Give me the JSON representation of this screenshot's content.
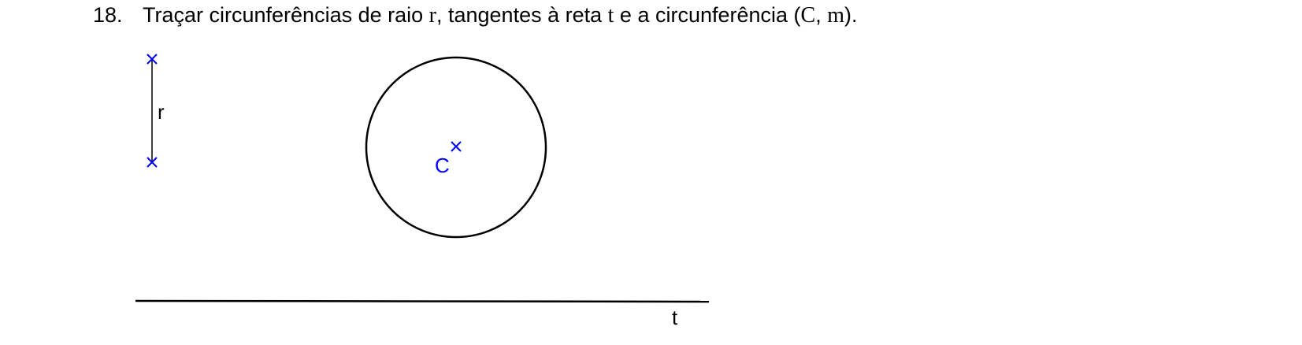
{
  "problem": {
    "number": "18.",
    "text_before_r": "Traçar circunferências de raio ",
    "var_r": "r",
    "text_after_r": ", tangentes à reta ",
    "var_t": "t",
    "text_after_t": " e a circunferência (",
    "var_C": "C",
    "sep": ", ",
    "var_m": "m",
    "text_end": ")."
  },
  "figure": {
    "segment_label": "r",
    "center_label": "C",
    "line_label": "t",
    "marker_color": "#0000ff",
    "stroke_color": "#000000"
  }
}
